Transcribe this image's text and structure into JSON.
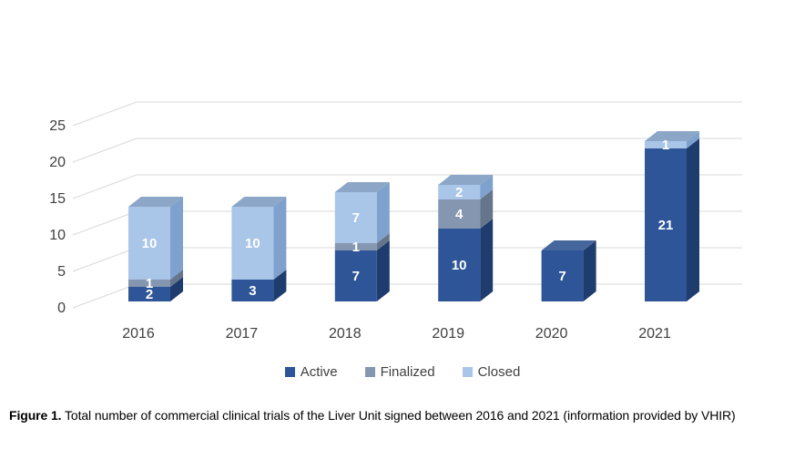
{
  "figure": {
    "caption_prefix": "Figure 1.",
    "caption_text": " Total number of commercial clinical trials of the Liver Unit signed between 2016 and 2021 (information provided by VHIR)"
  },
  "chart_data": {
    "type": "bar",
    "subtype": "stacked-3d",
    "title": "",
    "xlabel": "",
    "ylabel": "",
    "categories": [
      "2016",
      "2017",
      "2018",
      "2019",
      "2020",
      "2021"
    ],
    "series": [
      {
        "name": "Active",
        "values": [
          2,
          3,
          7,
          10,
          7,
          21
        ],
        "color": "#2E5597",
        "color_side": "#1F3C6E",
        "color_top": "#46679E"
      },
      {
        "name": "Finalized",
        "values": [
          1,
          0,
          1,
          4,
          0,
          0
        ],
        "color": "#8496B0",
        "color_side": "#64758C",
        "color_top": "#9FAEC4"
      },
      {
        "name": "Closed",
        "values": [
          10,
          10,
          7,
          2,
          0,
          1
        ],
        "color": "#A9C5E8",
        "color_side": "#7FA1CD",
        "color_top": "#8BA6C6"
      }
    ],
    "totals": [
      13,
      13,
      15,
      16,
      7,
      22
    ],
    "y_ticks": [
      0,
      5,
      10,
      15,
      20,
      25
    ],
    "ylim": [
      0,
      25
    ],
    "grid": true,
    "data_labels": true,
    "data_label_color": "#FFFFFF",
    "axis_text_color": "#404040",
    "gridline_color": "#D9D9D9",
    "legend_position": "bottom"
  }
}
